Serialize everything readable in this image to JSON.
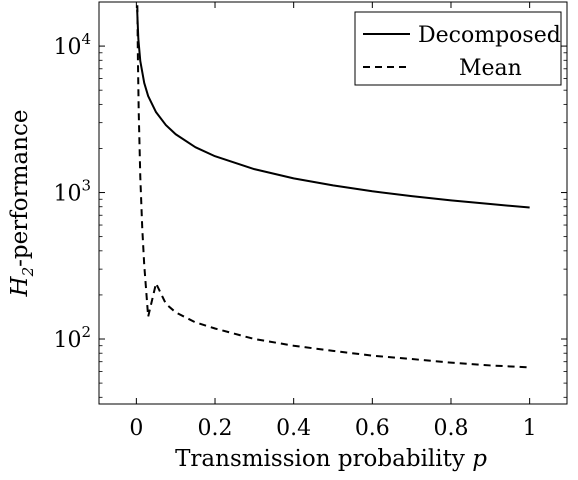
{
  "chart_data": {
    "type": "line",
    "title": "",
    "xlabel": {
      "prefix": "Transmission probability ",
      "var": "p"
    },
    "ylabel": {
      "var": "H",
      "sub": "2",
      "suffix": "-performance"
    },
    "xscale": "linear",
    "yscale": "log",
    "xlim": [
      -0.095,
      1.095
    ],
    "ylim": [
      36,
      20000
    ],
    "x_ticks": [
      0,
      0.2,
      0.4,
      0.6,
      0.8,
      1
    ],
    "x_tick_labels": [
      "0",
      "0.2",
      "0.4",
      "0.6",
      "0.8",
      "1"
    ],
    "y_ticks": [
      100,
      1000,
      10000
    ],
    "y_tick_labels": [
      {
        "base": "10",
        "exp": "2"
      },
      {
        "base": "10",
        "exp": "3"
      },
      {
        "base": "10",
        "exp": "4"
      }
    ],
    "grid": false,
    "legend_position": "top-right",
    "series": [
      {
        "name": "Decomposed",
        "style": "solid",
        "color": "#000000",
        "x": [
          0.002,
          0.005,
          0.01,
          0.02,
          0.03,
          0.05,
          0.075,
          0.1,
          0.15,
          0.2,
          0.3,
          0.4,
          0.5,
          0.6,
          0.7,
          0.8,
          0.9,
          1.0
        ],
        "y": [
          17700,
          11200,
          7900,
          5600,
          4560,
          3540,
          2890,
          2500,
          2040,
          1770,
          1445,
          1250,
          1120,
          1020,
          945,
          885,
          835,
          790
        ]
      },
      {
        "name": "Mean",
        "style": "dashed",
        "color": "#000000",
        "x": [
          0.0025,
          0.004,
          0.006,
          0.01,
          0.015,
          0.02,
          0.03,
          0.05,
          0.075,
          0.1,
          0.15,
          0.2,
          0.3,
          0.4,
          0.5,
          0.6,
          0.7,
          0.8,
          0.9,
          1.0
        ],
        "y": [
          19000,
          8000,
          3560,
          1280,
          569,
          320,
          142,
          240,
          174,
          152,
          130,
          118,
          100,
          90,
          83,
          77,
          73,
          69,
          66,
          64
        ]
      }
    ]
  }
}
